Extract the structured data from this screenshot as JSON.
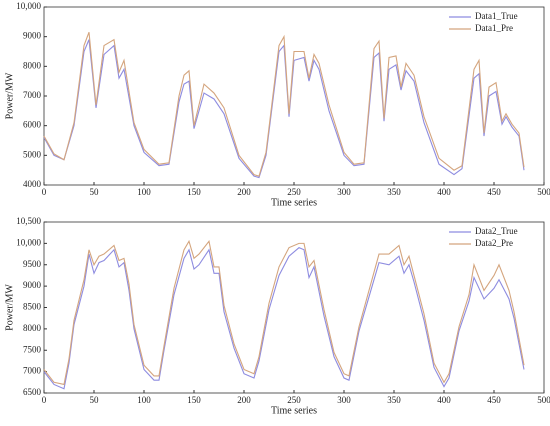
{
  "chart_data": [
    {
      "type": "line",
      "ylabel": "Power/MW",
      "xlabel": "Time series",
      "x": [
        0,
        10,
        20,
        30,
        40,
        45,
        52,
        60,
        70,
        75,
        80,
        90,
        100,
        115,
        125,
        135,
        140,
        145,
        150,
        160,
        170,
        180,
        195,
        210,
        215,
        222,
        235,
        240,
        245,
        250,
        260,
        265,
        270,
        275,
        285,
        300,
        310,
        320,
        330,
        335,
        340,
        345,
        352,
        357,
        362,
        370,
        380,
        395,
        410,
        418,
        430,
        435,
        440,
        445,
        452,
        458,
        462,
        468,
        475,
        480
      ],
      "series": [
        {
          "name": "Data1_True",
          "color": "#8e8ce0",
          "values": [
            5600,
            5000,
            4850,
            6000,
            8500,
            8900,
            6600,
            8400,
            8700,
            7600,
            7900,
            6000,
            5100,
            4650,
            4700,
            6800,
            7400,
            7500,
            5900,
            7100,
            6900,
            6400,
            4900,
            4300,
            4250,
            5000,
            8500,
            8700,
            6300,
            8200,
            8300,
            7500,
            8200,
            7900,
            6500,
            5000,
            4650,
            4700,
            8300,
            8450,
            6150,
            7900,
            8050,
            7200,
            7850,
            7500,
            6100,
            4700,
            4350,
            4550,
            7600,
            7750,
            5650,
            7000,
            7150,
            6050,
            6300,
            5950,
            5650,
            4500
          ]
        },
        {
          "name": "Data1_Pre",
          "color": "#d4a57e",
          "values": [
            5650,
            5050,
            4850,
            6100,
            8700,
            9150,
            6700,
            8700,
            8900,
            7800,
            8200,
            6100,
            5200,
            4700,
            4750,
            7000,
            7700,
            7850,
            6000,
            7400,
            7100,
            6600,
            5000,
            4350,
            4300,
            5100,
            8700,
            9000,
            6400,
            8500,
            8500,
            7600,
            8400,
            8100,
            6700,
            5100,
            4700,
            4750,
            8600,
            8850,
            6250,
            8300,
            8350,
            7300,
            8100,
            7700,
            6300,
            4900,
            4500,
            4650,
            7900,
            8200,
            5750,
            7300,
            7450,
            6150,
            6400,
            6050,
            5750,
            4600
          ]
        }
      ],
      "xlim": [
        0,
        500
      ],
      "xticks": [
        0,
        50,
        100,
        150,
        200,
        250,
        300,
        350,
        400,
        450,
        500
      ],
      "ylim": [
        4000,
        10000
      ],
      "yticks": [
        4000,
        5000,
        6000,
        7000,
        8000,
        9000,
        {
          "value": 10000,
          "label": "10,000"
        }
      ],
      "legend": "upper right"
    },
    {
      "type": "line",
      "ylabel": "Power/MW",
      "xlabel": "Time series",
      "x": [
        0,
        10,
        20,
        25,
        30,
        40,
        45,
        50,
        55,
        60,
        70,
        75,
        80,
        85,
        90,
        100,
        110,
        115,
        120,
        130,
        140,
        145,
        150,
        155,
        165,
        170,
        175,
        180,
        190,
        200,
        210,
        215,
        225,
        235,
        245,
        255,
        260,
        265,
        270,
        280,
        290,
        300,
        305,
        315,
        325,
        335,
        345,
        355,
        360,
        365,
        370,
        380,
        390,
        400,
        405,
        415,
        425,
        430,
        440,
        450,
        455,
        465,
        470,
        480
      ],
      "series": [
        {
          "name": "Data2_True",
          "color": "#8e8ce0",
          "values": [
            7000,
            6700,
            6600,
            7200,
            8100,
            9000,
            9750,
            9300,
            9550,
            9600,
            9850,
            9450,
            9550,
            8900,
            8000,
            7050,
            6800,
            6800,
            7500,
            8800,
            9650,
            9850,
            9400,
            9500,
            9850,
            9300,
            9300,
            8400,
            7550,
            6950,
            6850,
            7250,
            8450,
            9250,
            9700,
            9900,
            9850,
            9200,
            9450,
            8300,
            7350,
            6850,
            6800,
            7950,
            8750,
            9550,
            9500,
            9700,
            9300,
            9500,
            9100,
            8200,
            7100,
            6650,
            6850,
            7950,
            8650,
            9200,
            8700,
            8950,
            9150,
            8700,
            8250,
            7050
          ]
        },
        {
          "name": "Data2_Pre",
          "color": "#d4a57e",
          "values": [
            7050,
            6750,
            6700,
            7300,
            8200,
            9150,
            9850,
            9500,
            9700,
            9750,
            9950,
            9600,
            9650,
            9050,
            8100,
            7150,
            6900,
            6900,
            7600,
            8950,
            9850,
            10050,
            9650,
            9750,
            10050,
            9450,
            9450,
            8550,
            7650,
            7050,
            6950,
            7350,
            8600,
            9450,
            9900,
            10000,
            10000,
            9450,
            9600,
            8450,
            7450,
            6950,
            6900,
            8050,
            8900,
            9750,
            9750,
            9950,
            9500,
            9700,
            9250,
            8350,
            7200,
            6750,
            6950,
            8050,
            8800,
            9500,
            8900,
            9250,
            9500,
            8900,
            8400,
            7150
          ]
        }
      ],
      "xlim": [
        0,
        500
      ],
      "xticks": [
        0,
        50,
        100,
        150,
        200,
        250,
        300,
        350,
        400,
        450,
        500
      ],
      "ylim": [
        6500,
        10500
      ],
      "yticks": [
        6500,
        7000,
        7500,
        8000,
        8500,
        9000,
        9500,
        {
          "value": 10000,
          "label": "10,000"
        },
        {
          "value": 10500,
          "label": "10,500"
        }
      ],
      "legend": "upper right"
    }
  ]
}
